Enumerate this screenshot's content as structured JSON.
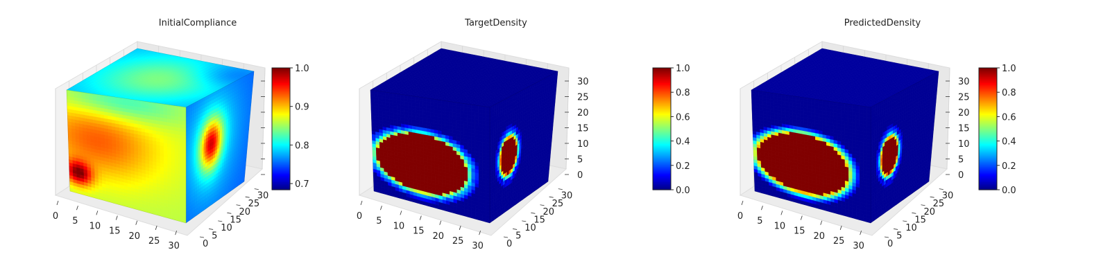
{
  "charts": [
    {
      "title": "InitialCompliance",
      "field": "compliance",
      "cbar_ticks": [
        "0.7",
        "0.8",
        "0.9",
        "1.0"
      ],
      "cbar_tick_values": [
        0.7,
        0.8,
        0.9,
        1.0
      ],
      "cbar_range": [
        0.684,
        1.0
      ],
      "x_ticks": [
        "0",
        "5",
        "10",
        "15",
        "20",
        "25",
        "30"
      ],
      "y_ticks": [
        "0",
        "5",
        "10",
        "15",
        "20",
        "25",
        "30"
      ],
      "z_ticks": []
    },
    {
      "title": "TargetDensity",
      "field": "density",
      "cbar_ticks": [
        "0.0",
        "0.2",
        "0.4",
        "0.6",
        "0.8",
        "1.0"
      ],
      "cbar_tick_values": [
        0.0,
        0.2,
        0.4,
        0.6,
        0.8,
        1.0
      ],
      "cbar_range": [
        0.0,
        1.0
      ],
      "x_ticks": [
        "0",
        "5",
        "10",
        "15",
        "20",
        "25",
        "30"
      ],
      "y_ticks": [
        "0",
        "5",
        "10",
        "15",
        "20",
        "25",
        "30"
      ],
      "z_ticks": [
        "0",
        "5",
        "10",
        "15",
        "20",
        "25",
        "30"
      ]
    },
    {
      "title": "PredictedDensity",
      "field": "density",
      "cbar_ticks": [
        "0.0",
        "0.2",
        "0.4",
        "0.6",
        "0.8",
        "1.0"
      ],
      "cbar_tick_values": [
        0.0,
        0.2,
        0.4,
        0.6,
        0.8,
        1.0
      ],
      "cbar_range": [
        0.0,
        1.0
      ],
      "x_ticks": [
        "0",
        "5",
        "10",
        "15",
        "20",
        "25",
        "30"
      ],
      "y_ticks": [
        "0",
        "5",
        "10",
        "15",
        "20",
        "25",
        "30"
      ],
      "z_ticks": [
        "0",
        "5",
        "10",
        "15",
        "20",
        "25",
        "30"
      ]
    }
  ],
  "chart_data": [
    {
      "type": "heatmap",
      "title": "InitialCompliance",
      "colormap": "jet",
      "colorbar_range": [
        0.684,
        1.0
      ],
      "colorbar_ticks": [
        0.7,
        0.8,
        0.9,
        1.0
      ],
      "x_ticks": [
        0,
        5,
        10,
        15,
        20,
        25,
        30
      ],
      "y_ticks": [
        0,
        5,
        10,
        15,
        20,
        25,
        30
      ],
      "grid": [
        32,
        32,
        32
      ]
    },
    {
      "type": "heatmap",
      "title": "TargetDensity",
      "colormap": "jet",
      "colorbar_range": [
        0.0,
        1.0
      ],
      "colorbar_ticks": [
        0.0,
        0.2,
        0.4,
        0.6,
        0.8,
        1.0
      ],
      "x_ticks": [
        0,
        5,
        10,
        15,
        20,
        25,
        30
      ],
      "y_ticks": [
        0,
        5,
        10,
        15,
        20,
        25,
        30
      ],
      "z_ticks": [
        0,
        5,
        10,
        15,
        20,
        25,
        30
      ],
      "grid": [
        32,
        32,
        32
      ]
    },
    {
      "type": "heatmap",
      "title": "PredictedDensity",
      "colormap": "jet",
      "colorbar_range": [
        0.0,
        1.0
      ],
      "colorbar_ticks": [
        0.0,
        0.2,
        0.4,
        0.6,
        0.8,
        1.0
      ],
      "x_ticks": [
        0,
        5,
        10,
        15,
        20,
        25,
        30
      ],
      "y_ticks": [
        0,
        5,
        10,
        15,
        20,
        25,
        30
      ],
      "z_ticks": [
        0,
        5,
        10,
        15,
        20,
        25,
        30
      ],
      "grid": [
        32,
        32,
        32
      ]
    }
  ]
}
